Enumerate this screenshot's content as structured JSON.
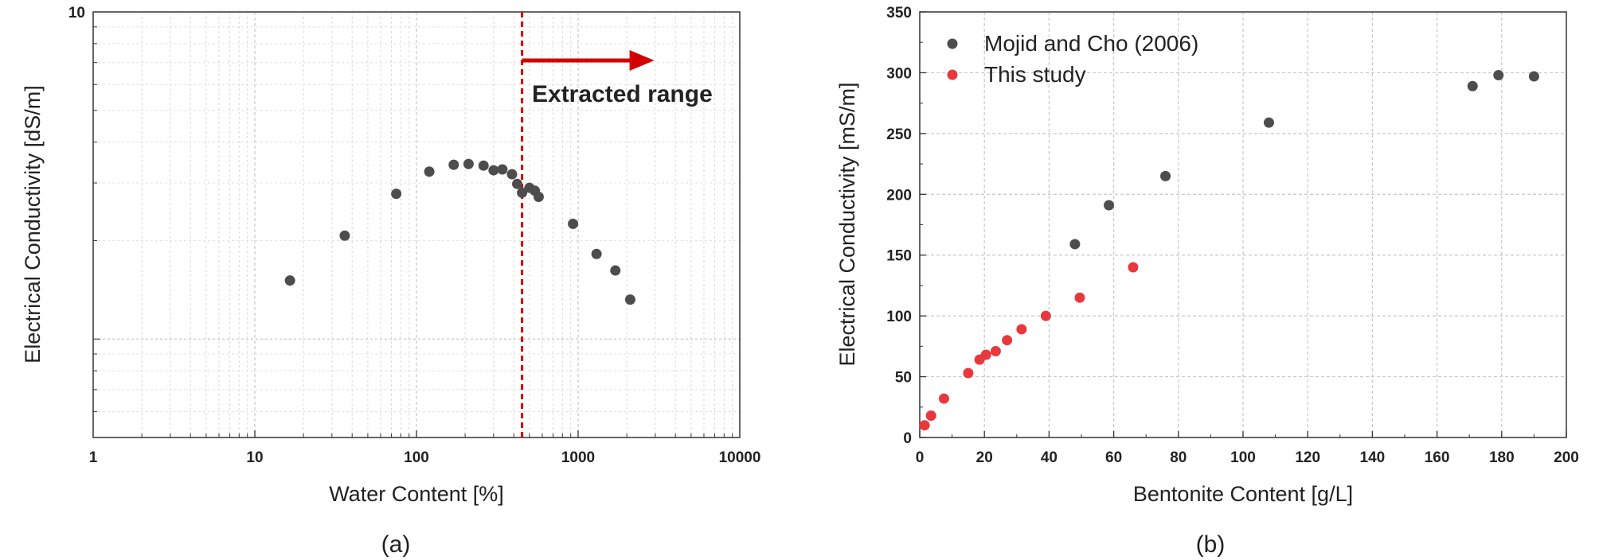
{
  "colors": {
    "series_dark": "#4d4d4d",
    "series_red": "#e8383d",
    "annotation": "#d40000",
    "grid": "#c8c8c8"
  },
  "chart_data": [
    {
      "panel_label": "(a)",
      "type": "scatter",
      "xlabel": "Water Content [%]",
      "ylabel": "Electrical Conductivity [dS/m]",
      "xscale": "log",
      "yscale": "log",
      "xlim": [
        1,
        10000
      ],
      "ylim": [
        0.5,
        10
      ],
      "x_tick_labels": [
        "1",
        "10",
        "100",
        "1000",
        "10000"
      ],
      "y_tick_labels": [
        "10"
      ],
      "grid": true,
      "series": [
        {
          "color": "#4d4d4d",
          "points": [
            {
              "x": 16.5,
              "y": 1.51
            },
            {
              "x": 36,
              "y": 2.07
            },
            {
              "x": 75,
              "y": 2.78
            },
            {
              "x": 120,
              "y": 3.25
            },
            {
              "x": 170,
              "y": 3.41
            },
            {
              "x": 210,
              "y": 3.43
            },
            {
              "x": 260,
              "y": 3.39
            },
            {
              "x": 300,
              "y": 3.28
            },
            {
              "x": 340,
              "y": 3.3
            },
            {
              "x": 390,
              "y": 3.19
            },
            {
              "x": 420,
              "y": 2.98
            },
            {
              "x": 450,
              "y": 2.8
            },
            {
              "x": 500,
              "y": 2.9
            },
            {
              "x": 540,
              "y": 2.84
            },
            {
              "x": 570,
              "y": 2.72
            },
            {
              "x": 930,
              "y": 2.25
            },
            {
              "x": 1300,
              "y": 1.82
            },
            {
              "x": 1700,
              "y": 1.62
            },
            {
              "x": 2100,
              "y": 1.32
            }
          ]
        }
      ],
      "vertical_line_x": 450,
      "annotation": "Extracted range"
    },
    {
      "panel_label": "(b)",
      "type": "scatter",
      "xlabel": "Bentonite Content [g/L]",
      "ylabel": "Electrical Conductivity [mS/m]",
      "xlim": [
        0,
        200
      ],
      "ylim": [
        0,
        350
      ],
      "x_ticks": [
        0,
        20,
        40,
        60,
        80,
        100,
        120,
        140,
        160,
        180,
        200
      ],
      "y_ticks": [
        0,
        50,
        100,
        150,
        200,
        250,
        300,
        350
      ],
      "grid": true,
      "legend_position": "top-left",
      "series": [
        {
          "name": "Mojid and Cho (2006)",
          "color": "#4d4d4d",
          "points": [
            {
              "x": 48,
              "y": 159
            },
            {
              "x": 58.5,
              "y": 191
            },
            {
              "x": 76,
              "y": 215
            },
            {
              "x": 108,
              "y": 259
            },
            {
              "x": 171,
              "y": 289
            },
            {
              "x": 179,
              "y": 298
            },
            {
              "x": 190,
              "y": 297
            }
          ]
        },
        {
          "name": "This study",
          "color": "#e8383d",
          "points": [
            {
              "x": 1.5,
              "y": 10
            },
            {
              "x": 3.5,
              "y": 18
            },
            {
              "x": 7.5,
              "y": 32
            },
            {
              "x": 15,
              "y": 53
            },
            {
              "x": 18.5,
              "y": 64
            },
            {
              "x": 20.5,
              "y": 68
            },
            {
              "x": 23.5,
              "y": 71
            },
            {
              "x": 27,
              "y": 80
            },
            {
              "x": 31.5,
              "y": 89
            },
            {
              "x": 39,
              "y": 100
            },
            {
              "x": 49.5,
              "y": 115
            },
            {
              "x": 66,
              "y": 140
            }
          ]
        }
      ]
    }
  ]
}
